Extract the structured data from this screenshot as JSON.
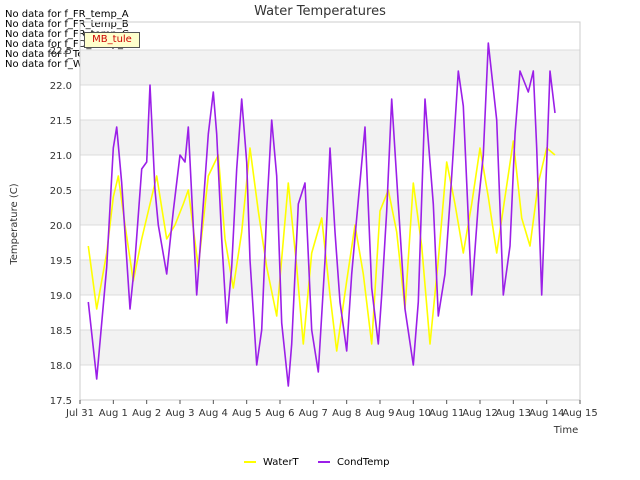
{
  "no_data_messages": [
    "No data for f_FR_temp_A",
    "No data for f_FR_temp_B",
    "No data for f_FR_temp_C",
    "No data for f_FD_Temp_1",
    "No data for f_Temp_A",
    "No data for f_WaterTemp_CTD"
  ],
  "badge_label": "MB_tule",
  "colors": {
    "WaterT": "#ffff00",
    "CondTemp": "#9b1fe8",
    "band": "#f2f2f2",
    "grid": "#dcdcdc"
  },
  "chart_data": {
    "type": "line",
    "title": "Water Temperatures",
    "xlabel": "Time",
    "ylabel": "Temperature (C)",
    "ylim": [
      17.5,
      22.9
    ],
    "xlim": [
      0,
      15
    ],
    "x_tick_labels": [
      "Jul 31",
      "Aug 1",
      "Aug 2",
      "Aug 3",
      "Aug 4",
      "Aug 5",
      "Aug 6",
      "Aug 7",
      "Aug 8",
      "Aug 9",
      "Aug 10",
      "Aug 11",
      "Aug 12",
      "Aug 13",
      "Aug 14",
      "Aug 15"
    ],
    "y_ticks": [
      17.5,
      18.0,
      18.5,
      19.0,
      19.5,
      20.0,
      20.5,
      21.0,
      21.5,
      22.0,
      22.5
    ],
    "grid": true,
    "legend_position": "bottom-center",
    "series": [
      {
        "name": "WaterT",
        "x": [
          0.25,
          0.5,
          0.8,
          1.0,
          1.15,
          1.35,
          1.6,
          1.85,
          2.1,
          2.3,
          2.6,
          2.85,
          3.1,
          3.25,
          3.55,
          3.85,
          4.15,
          4.35,
          4.6,
          4.85,
          5.1,
          5.35,
          5.6,
          5.9,
          6.25,
          6.5,
          6.7,
          6.95,
          7.25,
          7.5,
          7.7,
          8.0,
          8.25,
          8.5,
          8.75,
          9.0,
          9.25,
          9.5,
          9.75,
          10.0,
          10.25,
          10.5,
          10.75,
          11.0,
          11.25,
          11.5,
          11.75,
          12.0,
          12.25,
          12.5,
          12.75,
          13.0,
          13.25,
          13.5,
          13.75,
          14.0,
          14.25
        ],
        "y": [
          19.7,
          18.8,
          19.6,
          20.4,
          20.7,
          20.0,
          19.2,
          19.8,
          20.3,
          20.7,
          19.8,
          20.0,
          20.3,
          20.5,
          19.4,
          20.7,
          21.0,
          19.8,
          19.1,
          19.9,
          21.1,
          20.2,
          19.4,
          18.7,
          20.6,
          19.4,
          18.3,
          19.6,
          20.1,
          19.0,
          18.2,
          19.2,
          20.0,
          19.3,
          18.3,
          20.2,
          20.5,
          19.9,
          18.8,
          20.6,
          19.7,
          18.3,
          19.5,
          20.9,
          20.3,
          19.6,
          20.3,
          21.1,
          20.4,
          19.6,
          20.4,
          21.2,
          20.1,
          19.7,
          20.6,
          21.1,
          21.0
        ]
      },
      {
        "name": "CondTemp",
        "x": [
          0.25,
          0.5,
          0.8,
          1.0,
          1.1,
          1.25,
          1.5,
          1.65,
          1.85,
          2.0,
          2.1,
          2.25,
          2.35,
          2.6,
          2.8,
          3.0,
          3.15,
          3.25,
          3.5,
          3.7,
          3.85,
          4.0,
          4.1,
          4.25,
          4.4,
          4.55,
          4.7,
          4.85,
          5.0,
          5.1,
          5.3,
          5.45,
          5.6,
          5.75,
          5.9,
          6.05,
          6.25,
          6.35,
          6.55,
          6.75,
          6.95,
          7.15,
          7.35,
          7.5,
          7.65,
          7.8,
          8.0,
          8.15,
          8.3,
          8.55,
          8.75,
          8.95,
          9.05,
          9.2,
          9.35,
          9.55,
          9.75,
          10.0,
          10.15,
          10.35,
          10.6,
          10.75,
          10.95,
          11.15,
          11.35,
          11.5,
          11.75,
          11.95,
          12.1,
          12.25,
          12.5,
          12.7,
          12.9,
          13.05,
          13.2,
          13.45,
          13.6,
          13.7,
          13.85,
          14.0,
          14.1,
          14.25
        ],
        "y": [
          18.9,
          17.8,
          19.4,
          21.1,
          21.4,
          20.6,
          18.8,
          19.5,
          20.8,
          20.9,
          22.0,
          20.5,
          20.0,
          19.3,
          20.2,
          21.0,
          20.9,
          21.4,
          19.0,
          20.3,
          21.3,
          21.9,
          21.3,
          19.8,
          18.6,
          19.4,
          20.8,
          21.8,
          20.9,
          19.5,
          18.0,
          18.5,
          20.2,
          21.5,
          20.7,
          18.6,
          17.7,
          18.3,
          20.3,
          20.6,
          18.5,
          17.9,
          19.5,
          21.1,
          19.9,
          18.9,
          18.2,
          19.3,
          20.1,
          21.4,
          19.1,
          18.3,
          19.0,
          20.2,
          21.8,
          20.3,
          18.8,
          18.0,
          18.9,
          21.8,
          20.3,
          18.7,
          19.3,
          20.7,
          22.2,
          21.7,
          19.0,
          20.3,
          21.0,
          22.6,
          21.5,
          19.0,
          19.7,
          21.3,
          22.2,
          21.9,
          22.2,
          21.1,
          19.0,
          20.9,
          22.2,
          21.6
        ]
      }
    ]
  }
}
